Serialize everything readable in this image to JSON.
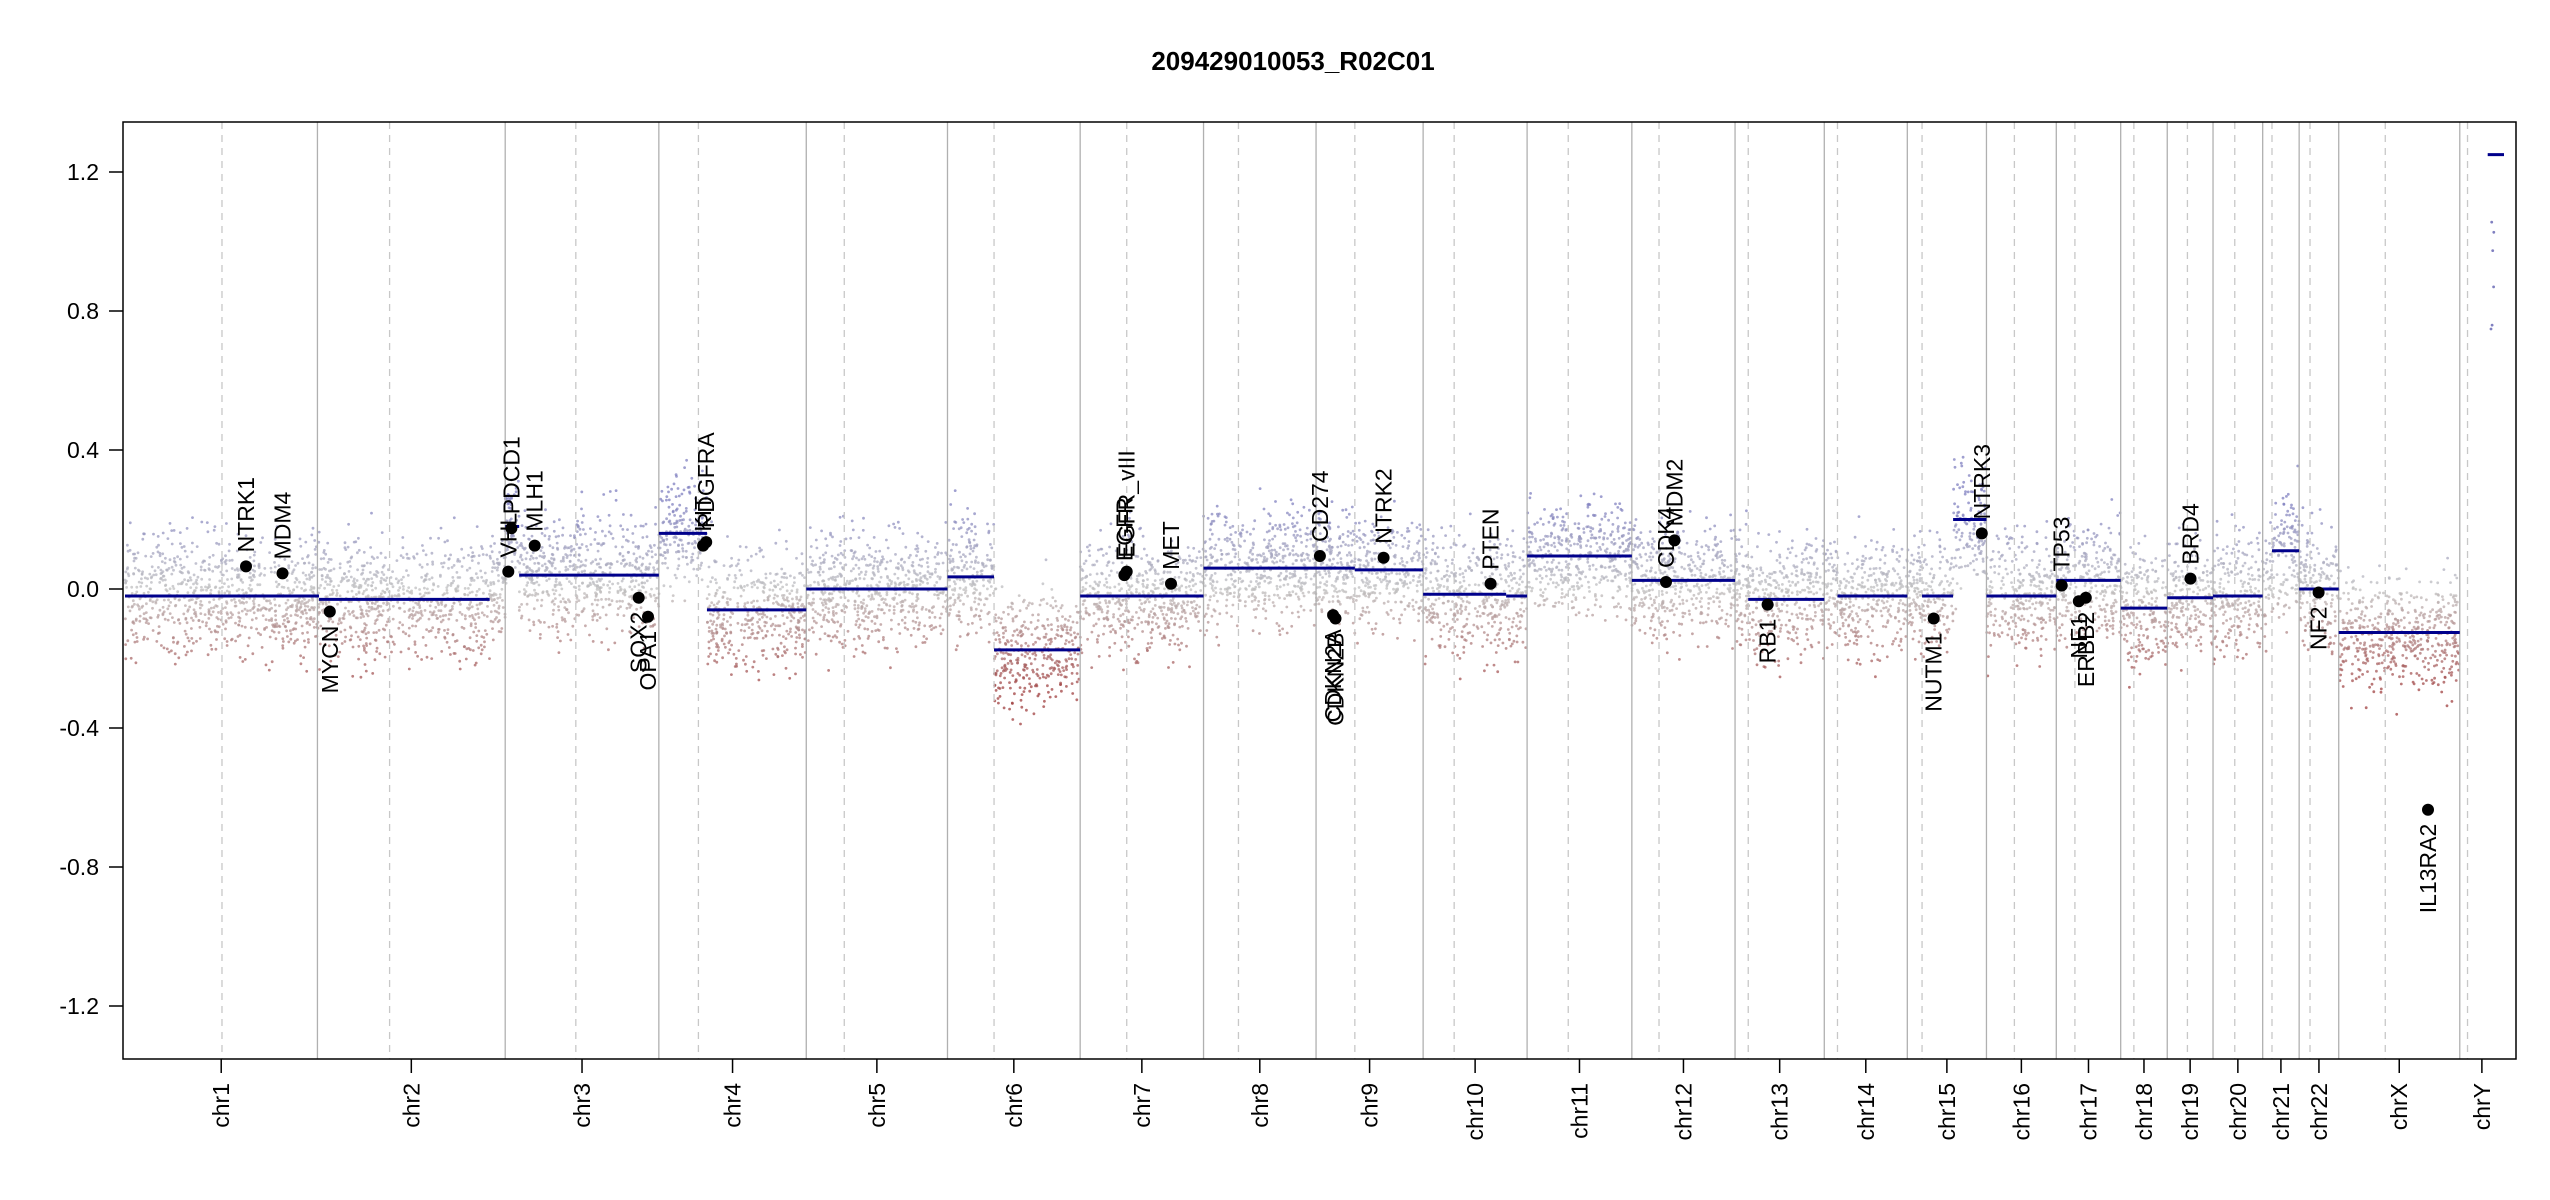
{
  "chart_data": {
    "type": "scatter",
    "title": "209429010053_R02C01",
    "xlabel": "",
    "ylabel": "",
    "ylim": [
      -1.35,
      1.35
    ],
    "y_ticks": [
      "1.2",
      "0.8",
      "0.4",
      "0.0",
      "-0.4",
      "-0.8",
      "-1.2"
    ],
    "grid": false,
    "colors": {
      "segment": "#00008b",
      "gain": "#8080c0",
      "neutral": "#c0c0c0",
      "loss": "#a04040",
      "gene_dot": "#000000",
      "chr_boundary": "#b0b0b0",
      "centromere": "#c8c8c8"
    },
    "chromosomes": [
      {
        "name": "chr1",
        "start": 0,
        "end": 248,
        "cen": 125
      },
      {
        "name": "chr2",
        "start": 248,
        "end": 490,
        "cen": 341
      },
      {
        "name": "chr3",
        "start": 490,
        "end": 688,
        "cen": 581
      },
      {
        "name": "chr4",
        "start": 688,
        "end": 878,
        "cen": 739
      },
      {
        "name": "chr5",
        "start": 878,
        "end": 1060,
        "cen": 927
      },
      {
        "name": "chr6",
        "start": 1060,
        "end": 1231,
        "cen": 1120
      },
      {
        "name": "chr7",
        "start": 1231,
        "end": 1390,
        "cen": 1291
      },
      {
        "name": "chr8",
        "start": 1390,
        "end": 1535,
        "cen": 1435
      },
      {
        "name": "chr9",
        "start": 1535,
        "end": 1673,
        "cen": 1585
      },
      {
        "name": "chr10",
        "start": 1673,
        "end": 1807,
        "cen": 1713
      },
      {
        "name": "chr11",
        "start": 1807,
        "end": 1942,
        "cen": 1860
      },
      {
        "name": "chr12",
        "start": 1942,
        "end": 2075,
        "cen": 1977
      },
      {
        "name": "chr13",
        "start": 2075,
        "end": 2190,
        "cen": 2092
      },
      {
        "name": "chr14",
        "start": 2190,
        "end": 2297,
        "cen": 2207
      },
      {
        "name": "chr15",
        "start": 2297,
        "end": 2399,
        "cen": 2316
      },
      {
        "name": "chr16",
        "start": 2399,
        "end": 2489,
        "cen": 2435
      },
      {
        "name": "chr17",
        "start": 2489,
        "end": 2572,
        "cen": 2513
      },
      {
        "name": "chr18",
        "start": 2572,
        "end": 2632,
        "cen": 2589
      },
      {
        "name": "chr19",
        "start": 2632,
        "end": 2691,
        "cen": 2658
      },
      {
        "name": "chr20",
        "start": 2691,
        "end": 2755,
        "cen": 2719
      },
      {
        "name": "chr21",
        "start": 2755,
        "end": 2802,
        "cen": 2767
      },
      {
        "name": "chr22",
        "start": 2802,
        "end": 2853,
        "cen": 2816
      },
      {
        "name": "chrX",
        "start": 2853,
        "end": 3009,
        "cen": 2913
      },
      {
        "name": "chrY",
        "start": 3009,
        "end": 3066,
        "cen": 3019
      }
    ],
    "segments": [
      {
        "start": 0,
        "end": 250,
        "value": -0.02
      },
      {
        "start": 250,
        "end": 470,
        "value": -0.03
      },
      {
        "start": 490,
        "end": 508,
        "value": 0.18
      },
      {
        "start": 508,
        "end": 688,
        "value": 0.04
      },
      {
        "start": 688,
        "end": 750,
        "value": 0.16
      },
      {
        "start": 750,
        "end": 878,
        "value": -0.06
      },
      {
        "start": 878,
        "end": 1060,
        "value": 0.0
      },
      {
        "start": 1060,
        "end": 1120,
        "value": 0.035
      },
      {
        "start": 1120,
        "end": 1231,
        "value": -0.175
      },
      {
        "start": 1231,
        "end": 1390,
        "value": -0.02
      },
      {
        "start": 1390,
        "end": 1585,
        "value": 0.06
      },
      {
        "start": 1585,
        "end": 1673,
        "value": 0.055
      },
      {
        "start": 1673,
        "end": 1780,
        "value": -0.015
      },
      {
        "start": 1780,
        "end": 1807,
        "value": -0.02
      },
      {
        "start": 1807,
        "end": 1942,
        "value": 0.095
      },
      {
        "start": 1942,
        "end": 2075,
        "value": 0.025
      },
      {
        "start": 2092,
        "end": 2190,
        "value": -0.03
      },
      {
        "start": 2207,
        "end": 2297,
        "value": -0.02
      },
      {
        "start": 2316,
        "end": 2356,
        "value": -0.02
      },
      {
        "start": 2356,
        "end": 2399,
        "value": 0.2
      },
      {
        "start": 2399,
        "end": 2489,
        "value": -0.02
      },
      {
        "start": 2489,
        "end": 2572,
        "value": 0.025
      },
      {
        "start": 2572,
        "end": 2632,
        "value": -0.055
      },
      {
        "start": 2632,
        "end": 2691,
        "value": -0.025
      },
      {
        "start": 2691,
        "end": 2755,
        "value": -0.02
      },
      {
        "start": 2767,
        "end": 2802,
        "value": 0.11
      },
      {
        "start": 2802,
        "end": 2853,
        "value": 0.0
      },
      {
        "start": 2853,
        "end": 3009,
        "value": -0.125
      },
      {
        "start": 3045,
        "end": 3066,
        "value": 1.25
      }
    ],
    "genes": [
      {
        "name": "NTRK1",
        "x": 156,
        "value": 0.065,
        "label_dir": "up"
      },
      {
        "name": "MDM4",
        "x": 203,
        "value": 0.045,
        "label_dir": "up"
      },
      {
        "name": "MYCN",
        "x": 264,
        "value": -0.065,
        "label_dir": "down"
      },
      {
        "name": "VHL",
        "x": 494,
        "value": 0.05,
        "label_dir": "up"
      },
      {
        "name": "PDCD1",
        "x": 498,
        "value": 0.175,
        "label_dir": "up"
      },
      {
        "name": "MLH1",
        "x": 528,
        "value": 0.125,
        "label_dir": "up"
      },
      {
        "name": "SOX2",
        "x": 662,
        "value": -0.025,
        "label_dir": "down"
      },
      {
        "name": "OPA1",
        "x": 674,
        "value": -0.08,
        "label_dir": "down"
      },
      {
        "name": "KIT",
        "x": 745,
        "value": 0.125,
        "label_dir": "up"
      },
      {
        "name": "PDGFRA",
        "x": 749,
        "value": 0.135,
        "label_dir": "up"
      },
      {
        "name": "EGFR",
        "x": 1288,
        "value": 0.04,
        "label_dir": "up"
      },
      {
        "name": "EGFR_vIII",
        "x": 1291,
        "value": 0.05,
        "label_dir": "up"
      },
      {
        "name": "MET",
        "x": 1348,
        "value": 0.015,
        "label_dir": "up"
      },
      {
        "name": "CD274",
        "x": 1540,
        "value": 0.095,
        "label_dir": "up"
      },
      {
        "name": "CDKN2A",
        "x": 1557,
        "value": -0.075,
        "label_dir": "down"
      },
      {
        "name": "CDKN2B",
        "x": 1560,
        "value": -0.085,
        "label_dir": "down"
      },
      {
        "name": "NTRK2",
        "x": 1622,
        "value": 0.09,
        "label_dir": "up"
      },
      {
        "name": "PTEN",
        "x": 1760,
        "value": 0.015,
        "label_dir": "up"
      },
      {
        "name": "CDK4",
        "x": 1986,
        "value": 0.02,
        "label_dir": "up"
      },
      {
        "name": "MDM2",
        "x": 1997,
        "value": 0.14,
        "label_dir": "up"
      },
      {
        "name": "RB1",
        "x": 2117,
        "value": -0.045,
        "label_dir": "down"
      },
      {
        "name": "NUTM1",
        "x": 2331,
        "value": -0.085,
        "label_dir": "down"
      },
      {
        "name": "NTRK3",
        "x": 2393,
        "value": 0.16,
        "label_dir": "up"
      },
      {
        "name": "TP53",
        "x": 2496,
        "value": 0.01,
        "label_dir": "up"
      },
      {
        "name": "NF1",
        "x": 2518,
        "value": -0.035,
        "label_dir": "down"
      },
      {
        "name": "ERBB2",
        "x": 2527,
        "value": -0.025,
        "label_dir": "down"
      },
      {
        "name": "BRD4",
        "x": 2662,
        "value": 0.03,
        "label_dir": "up"
      },
      {
        "name": "NF2",
        "x": 2827,
        "value": -0.01,
        "label_dir": "down"
      },
      {
        "name": "IL13RA2",
        "x": 2968,
        "value": -0.635,
        "label_dir": "down"
      }
    ]
  }
}
